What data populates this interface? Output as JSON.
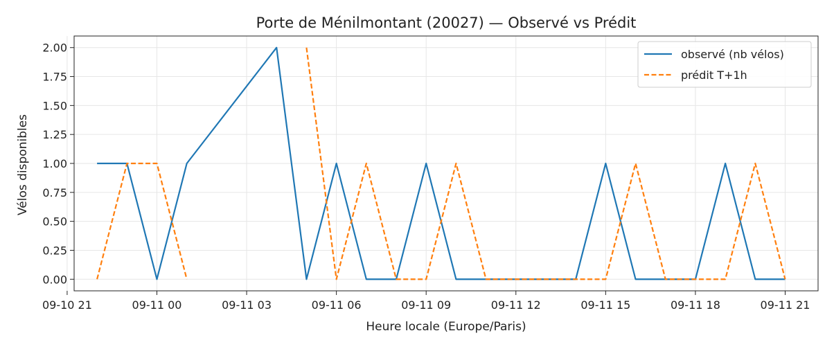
{
  "chart_data": {
    "type": "line",
    "title": "Porte de Ménilmontant (20027) — Observé vs Prédit",
    "xlabel": "Heure locale (Europe/Paris)",
    "ylabel": "Vélos disponibles",
    "ylim": [
      -0.1,
      2.1
    ],
    "xlim": [
      "2024-09-10 21:14",
      "2024-09-11 22:06"
    ],
    "grid": true,
    "legend_position": "top-right",
    "x_ticks": [
      {
        "t": "2024-09-10 21:00",
        "label": "09-10 21"
      },
      {
        "t": "2024-09-11 00:00",
        "label": "09-11 00"
      },
      {
        "t": "2024-09-11 03:00",
        "label": "09-11 03"
      },
      {
        "t": "2024-09-11 06:00",
        "label": "09-11 06"
      },
      {
        "t": "2024-09-11 09:00",
        "label": "09-11 09"
      },
      {
        "t": "2024-09-11 12:00",
        "label": "09-11 12"
      },
      {
        "t": "2024-09-11 15:00",
        "label": "09-11 15"
      },
      {
        "t": "2024-09-11 18:00",
        "label": "09-11 18"
      },
      {
        "t": "2024-09-11 21:00",
        "label": "09-11 21"
      }
    ],
    "y_ticks": [
      "0.00",
      "0.25",
      "0.50",
      "0.75",
      "1.00",
      "1.25",
      "1.50",
      "1.75",
      "2.00"
    ],
    "series": [
      {
        "name": "observé (nb vélos)",
        "color": "#1f77b4",
        "dash": "solid",
        "x": [
          "2024-09-10 22:00",
          "2024-09-10 23:00",
          "2024-09-11 00:00",
          "2024-09-11 01:00",
          "2024-09-11 04:00",
          "2024-09-11 05:00",
          "2024-09-11 06:00",
          "2024-09-11 07:00",
          "2024-09-11 08:00",
          "2024-09-11 09:00",
          "2024-09-11 10:00",
          "2024-09-11 11:00",
          "2024-09-11 12:00",
          "2024-09-11 13:00",
          "2024-09-11 14:00",
          "2024-09-11 15:00",
          "2024-09-11 16:00",
          "2024-09-11 17:00",
          "2024-09-11 18:00",
          "2024-09-11 19:00",
          "2024-09-11 20:00",
          "2024-09-11 21:00"
        ],
        "y": [
          1,
          1,
          0,
          1,
          2,
          0,
          1,
          0,
          0,
          1,
          0,
          0,
          0,
          0,
          0,
          1,
          0,
          0,
          0,
          1,
          0,
          0
        ]
      },
      {
        "name": "prédit T+1h",
        "color": "#ff7f0e",
        "dash": "dashed",
        "segments": [
          {
            "x": [
              "2024-09-10 22:00",
              "2024-09-10 23:00",
              "2024-09-11 00:00",
              "2024-09-11 01:00"
            ],
            "y": [
              0,
              1,
              1,
              0
            ]
          },
          {
            "x": [
              "2024-09-11 05:00",
              "2024-09-11 06:00",
              "2024-09-11 07:00",
              "2024-09-11 08:00",
              "2024-09-11 09:00",
              "2024-09-11 10:00",
              "2024-09-11 11:00",
              "2024-09-11 12:00",
              "2024-09-11 13:00",
              "2024-09-11 14:00",
              "2024-09-11 15:00",
              "2024-09-11 16:00",
              "2024-09-11 17:00",
              "2024-09-11 18:00",
              "2024-09-11 19:00",
              "2024-09-11 20:00",
              "2024-09-11 21:00"
            ],
            "y": [
              2,
              0,
              1,
              0,
              0,
              1,
              0,
              0,
              0,
              0,
              0,
              1,
              0,
              0,
              0,
              1,
              0
            ]
          }
        ]
      }
    ]
  }
}
